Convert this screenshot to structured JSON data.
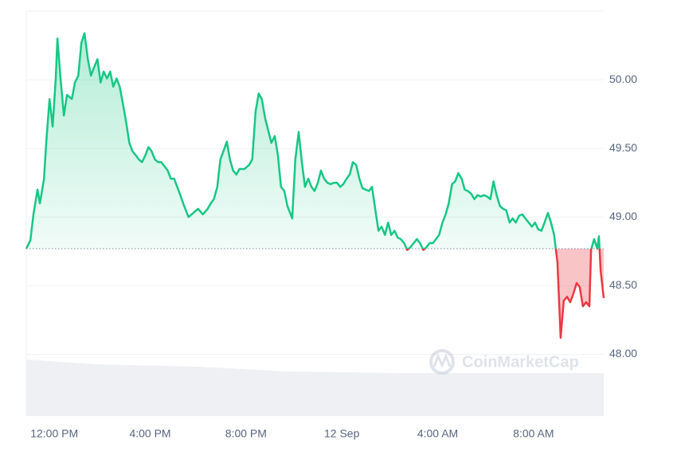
{
  "chart_data": {
    "type": "line",
    "x": [
      10.83,
      11.0,
      11.13,
      11.3,
      11.4,
      11.57,
      11.66,
      11.8,
      11.93,
      12.06,
      12.13,
      12.26,
      12.4,
      12.53,
      12.73,
      12.86,
      13.0,
      13.13,
      13.26,
      13.4,
      13.53,
      13.66,
      13.8,
      13.93,
      14.06,
      14.2,
      14.33,
      14.46,
      14.6,
      14.73,
      14.86,
      15.0,
      15.13,
      15.26,
      15.4,
      15.53,
      15.66,
      15.8,
      15.93,
      16.06,
      16.2,
      16.33,
      16.46,
      16.6,
      16.73,
      16.86,
      17.0,
      17.13,
      17.26,
      17.4,
      17.6,
      17.8,
      18.0,
      18.2,
      18.4,
      18.53,
      18.66,
      18.8,
      18.93,
      19.06,
      19.2,
      19.33,
      19.46,
      19.6,
      19.73,
      19.93,
      20.13,
      20.26,
      20.4,
      20.53,
      20.66,
      20.8,
      20.93,
      21.06,
      21.2,
      21.33,
      21.46,
      21.6,
      21.73,
      21.93,
      22.06,
      22.2,
      22.33,
      22.46,
      22.6,
      22.73,
      22.86,
      23.0,
      23.13,
      23.26,
      23.4,
      23.53,
      23.66,
      23.8,
      23.93,
      24.06,
      24.2,
      24.33,
      24.46,
      24.6,
      24.73,
      24.86,
      25.0,
      25.13,
      25.26,
      25.4,
      25.53,
      25.66,
      25.8,
      25.93,
      26.06,
      26.2,
      26.33,
      26.46,
      26.6,
      26.73,
      26.86,
      27.0,
      27.13,
      27.26,
      27.4,
      27.53,
      27.66,
      27.8,
      27.93,
      28.06,
      28.2,
      28.33,
      28.46,
      28.6,
      28.73,
      28.86,
      29.0,
      29.13,
      29.26,
      29.4,
      29.53,
      29.66,
      29.8,
      29.93,
      30.06,
      30.2,
      30.33,
      30.46,
      30.6,
      30.73,
      30.86,
      31.0,
      31.13,
      31.26,
      31.4,
      31.53,
      31.66,
      31.8,
      31.93,
      32.06,
      32.2,
      32.33,
      32.46,
      32.6,
      32.73,
      32.86,
      33.0,
      33.13,
      33.26,
      33.4,
      33.53,
      33.66,
      33.8,
      33.93,
      34.06,
      34.2,
      34.33,
      34.4,
      34.53,
      34.66,
      34.73,
      34.8,
      34.93
    ],
    "values": [
      48.77,
      48.83,
      49.02,
      49.2,
      49.1,
      49.28,
      49.54,
      49.86,
      49.66,
      50.01,
      50.3,
      50.01,
      49.74,
      49.89,
      49.86,
      49.98,
      50.03,
      50.27,
      50.34,
      50.15,
      50.03,
      50.09,
      50.15,
      49.98,
      50.06,
      50.01,
      50.06,
      49.95,
      50.01,
      49.95,
      49.83,
      49.69,
      49.54,
      49.48,
      49.45,
      49.42,
      49.4,
      49.45,
      49.51,
      49.48,
      49.42,
      49.4,
      49.4,
      49.37,
      49.34,
      49.28,
      49.28,
      49.22,
      49.16,
      49.09,
      49.0,
      49.03,
      49.06,
      49.02,
      49.06,
      49.1,
      49.13,
      49.22,
      49.42,
      49.48,
      49.55,
      49.42,
      49.34,
      49.31,
      49.35,
      49.35,
      49.38,
      49.42,
      49.77,
      49.9,
      49.86,
      49.72,
      49.63,
      49.54,
      49.59,
      49.45,
      49.22,
      49.19,
      49.08,
      48.99,
      49.42,
      49.62,
      49.4,
      49.22,
      49.28,
      49.22,
      49.19,
      49.25,
      49.34,
      49.28,
      49.25,
      49.24,
      49.25,
      49.25,
      49.22,
      49.24,
      49.28,
      49.31,
      49.4,
      49.38,
      49.28,
      49.21,
      49.2,
      49.19,
      49.22,
      49.05,
      48.9,
      48.93,
      48.87,
      48.96,
      48.87,
      48.9,
      48.85,
      48.84,
      48.81,
      48.76,
      48.78,
      48.81,
      48.84,
      48.81,
      48.76,
      48.78,
      48.81,
      48.81,
      48.84,
      48.87,
      48.96,
      49.02,
      49.1,
      49.24,
      49.26,
      49.32,
      49.28,
      49.2,
      49.19,
      49.17,
      49.13,
      49.16,
      49.15,
      49.16,
      49.15,
      49.13,
      49.26,
      49.16,
      49.08,
      49.06,
      49.05,
      48.96,
      48.99,
      48.96,
      49.01,
      49.02,
      48.99,
      48.96,
      48.93,
      48.96,
      48.91,
      48.9,
      48.96,
      49.03,
      48.96,
      48.87,
      48.67,
      48.12,
      48.39,
      48.42,
      48.38,
      48.44,
      48.52,
      48.49,
      48.35,
      48.38,
      48.35,
      48.76,
      48.84,
      48.77,
      48.86,
      48.61,
      48.41
    ],
    "baseline": 48.77,
    "up_color": "#16c784",
    "down_color": "#ea3943",
    "xlim": [
      10.83,
      34.93
    ],
    "xticks": [
      {
        "value": 12,
        "label": "12:00 PM"
      },
      {
        "value": 16,
        "label": "4:00 PM"
      },
      {
        "value": 20,
        "label": "8:00 PM"
      },
      {
        "value": 24,
        "label": "12 Sep"
      },
      {
        "value": 28,
        "label": "4:00 AM"
      },
      {
        "value": 32,
        "label": "8:00 AM"
      }
    ],
    "ylim": [
      47.55,
      50.5
    ],
    "yticks": [
      {
        "value": 48,
        "label": "48.00"
      },
      {
        "value": 48.5,
        "label": "48.50"
      },
      {
        "value": 49,
        "label": "49.00"
      },
      {
        "value": 49.5,
        "label": "49.50"
      },
      {
        "value": 50,
        "label": "50.00"
      }
    ],
    "grid": true,
    "watermark": "CoinMarketCap"
  }
}
